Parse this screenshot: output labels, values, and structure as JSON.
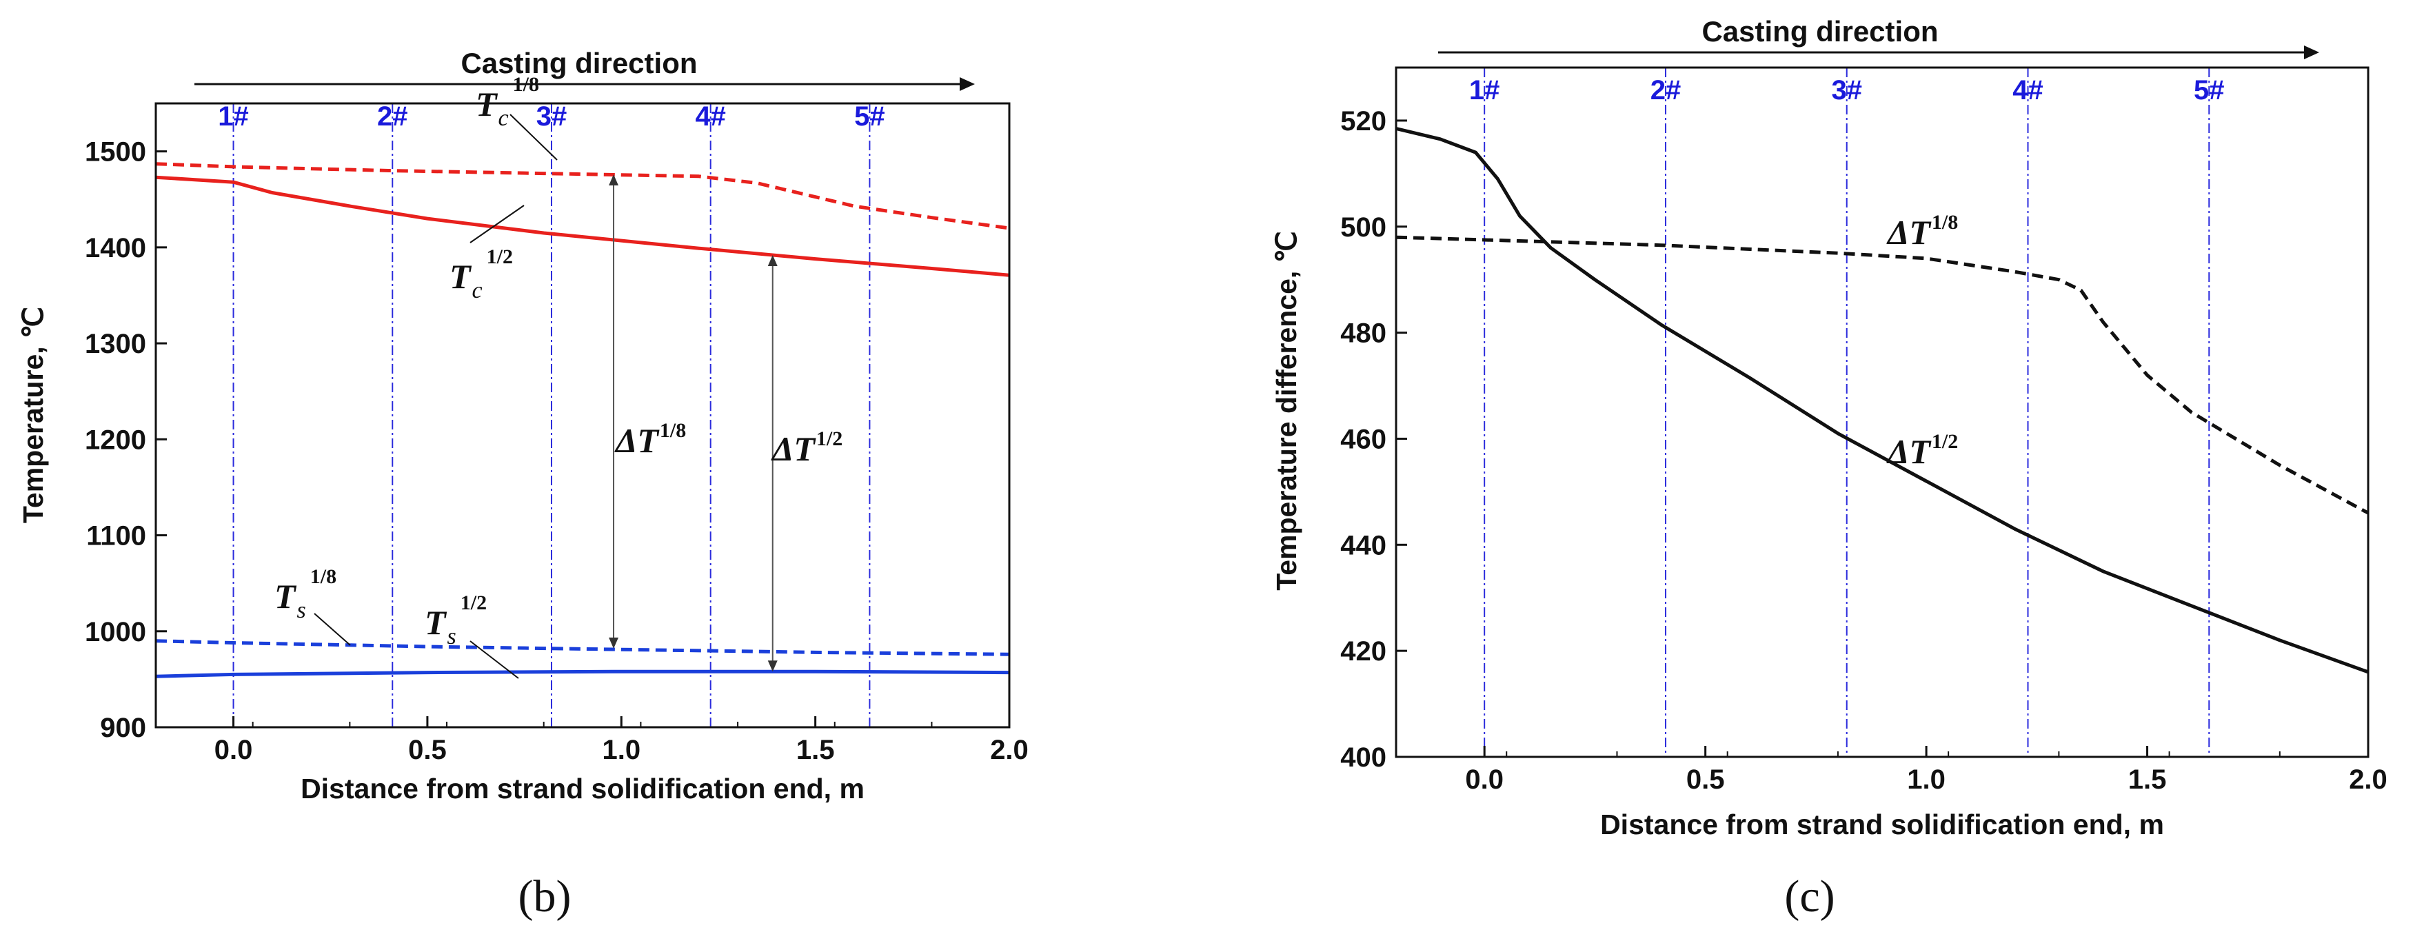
{
  "chart_data": [
    {
      "id": "b",
      "type": "line",
      "caption": "(b)",
      "direction_label": "Casting direction",
      "xlabel": "Distance from strand solidification end, m",
      "ylabel": "Temperature, ℃",
      "xlim": [
        -0.2,
        2.0
      ],
      "ylim": [
        900,
        1550
      ],
      "xticks": [
        0.0,
        0.5,
        1.0,
        1.5,
        2.0
      ],
      "xtick_labels": [
        "0.0",
        "0.5",
        "1.0",
        "1.5",
        "2.0"
      ],
      "yticks": [
        900,
        1000,
        1100,
        1200,
        1300,
        1400,
        1500
      ],
      "ytick_labels": [
        "900",
        "1000",
        "1100",
        "1200",
        "1300",
        "1400",
        "1500"
      ],
      "markers": [
        {
          "label": "1#",
          "x": 0.0
        },
        {
          "label": "2#",
          "x": 0.41
        },
        {
          "label": "3#",
          "x": 0.82
        },
        {
          "label": "4#",
          "x": 1.23
        },
        {
          "label": "5#",
          "x": 1.64
        }
      ],
      "series": [
        {
          "name": "Tc 1/8",
          "color": "#e8211d",
          "style": "dashed",
          "points": [
            [
              -0.2,
              1487
            ],
            [
              0.0,
              1484
            ],
            [
              0.4,
              1480
            ],
            [
              0.8,
              1477
            ],
            [
              1.2,
              1474
            ],
            [
              1.35,
              1467
            ],
            [
              1.6,
              1443
            ],
            [
              1.8,
              1431
            ],
            [
              2.0,
              1420
            ]
          ]
        },
        {
          "name": "Tc 1/2",
          "color": "#e8211d",
          "style": "solid",
          "points": [
            [
              -0.2,
              1473
            ],
            [
              0.0,
              1468
            ],
            [
              0.1,
              1457
            ],
            [
              0.3,
              1443
            ],
            [
              0.5,
              1430
            ],
            [
              0.8,
              1415
            ],
            [
              1.0,
              1407
            ],
            [
              1.2,
              1399
            ],
            [
              1.5,
              1388
            ],
            [
              1.8,
              1378
            ],
            [
              2.0,
              1371
            ]
          ]
        },
        {
          "name": "Ts 1/8",
          "color": "#1a3fdb",
          "style": "dashed",
          "points": [
            [
              -0.2,
              990
            ],
            [
              0.0,
              988
            ],
            [
              0.5,
              984
            ],
            [
              1.0,
              981
            ],
            [
              1.5,
              978
            ],
            [
              2.0,
              976
            ]
          ]
        },
        {
          "name": "Ts 1/2",
          "color": "#1a3fdb",
          "style": "solid",
          "points": [
            [
              -0.2,
              953
            ],
            [
              0.0,
              955
            ],
            [
              0.5,
              957
            ],
            [
              1.0,
              958
            ],
            [
              1.5,
              958
            ],
            [
              2.0,
              957
            ]
          ]
        }
      ],
      "annotations": [
        {
          "base": "T",
          "sub": "c",
          "sup": "1/8"
        },
        {
          "base": "T",
          "sub": "c",
          "sup": "1/2"
        },
        {
          "base": "T",
          "sub": "s",
          "sup": "1/8"
        },
        {
          "base": "T",
          "sub": "s",
          "sup": "1/2"
        },
        {
          "base": "ΔT",
          "sub": "",
          "sup": "1/8",
          "arrow_x": 0.98,
          "arrow_from": 1476,
          "arrow_to": 982
        },
        {
          "base": "ΔT",
          "sub": "",
          "sup": "1/2",
          "arrow_x": 1.39,
          "arrow_from": 1392,
          "arrow_to": 958
        }
      ]
    },
    {
      "id": "c",
      "type": "line",
      "caption": "(c)",
      "direction_label": "Casting direction",
      "xlabel": "Distance from strand solidification end, m",
      "ylabel": "Temperature difference, ℃",
      "xlim": [
        -0.2,
        2.0
      ],
      "ylim": [
        400,
        530
      ],
      "xticks": [
        0.0,
        0.5,
        1.0,
        1.5,
        2.0
      ],
      "xtick_labels": [
        "0.0",
        "0.5",
        "1.0",
        "1.5",
        "2.0"
      ],
      "yticks": [
        400,
        420,
        440,
        460,
        480,
        500,
        520
      ],
      "ytick_labels": [
        "400",
        "420",
        "440",
        "460",
        "480",
        "500",
        "520"
      ],
      "markers": [
        {
          "label": "1#",
          "x": 0.0
        },
        {
          "label": "2#",
          "x": 0.41
        },
        {
          "label": "3#",
          "x": 0.82
        },
        {
          "label": "4#",
          "x": 1.23
        },
        {
          "label": "5#",
          "x": 1.64
        }
      ],
      "series": [
        {
          "name": "ΔT 1/8",
          "color": "#111111",
          "style": "dashed",
          "points": [
            [
              -0.2,
              498
            ],
            [
              0.0,
              497.5
            ],
            [
              0.4,
              496.5
            ],
            [
              0.8,
              495
            ],
            [
              1.0,
              494
            ],
            [
              1.2,
              491.5
            ],
            [
              1.3,
              490
            ],
            [
              1.35,
              488
            ],
            [
              1.4,
              482
            ],
            [
              1.5,
              472
            ],
            [
              1.6,
              465
            ],
            [
              1.8,
              455
            ],
            [
              2.0,
              446
            ]
          ]
        },
        {
          "name": "ΔT 1/2",
          "color": "#111111",
          "style": "solid",
          "points": [
            [
              -0.2,
              518.5
            ],
            [
              -0.1,
              516.5
            ],
            [
              -0.02,
              514
            ],
            [
              0.03,
              509
            ],
            [
              0.08,
              502
            ],
            [
              0.15,
              496
            ],
            [
              0.25,
              490
            ],
            [
              0.4,
              481.5
            ],
            [
              0.6,
              471.5
            ],
            [
              0.8,
              461
            ],
            [
              1.0,
              452
            ],
            [
              1.2,
              443
            ],
            [
              1.4,
              435
            ],
            [
              1.6,
              428.5
            ],
            [
              1.8,
              422
            ],
            [
              2.0,
              416
            ]
          ]
        }
      ],
      "annotations": [
        {
          "base": "ΔT",
          "sub": "",
          "sup": "1/8"
        },
        {
          "base": "ΔT",
          "sub": "",
          "sup": "1/2"
        }
      ]
    }
  ]
}
